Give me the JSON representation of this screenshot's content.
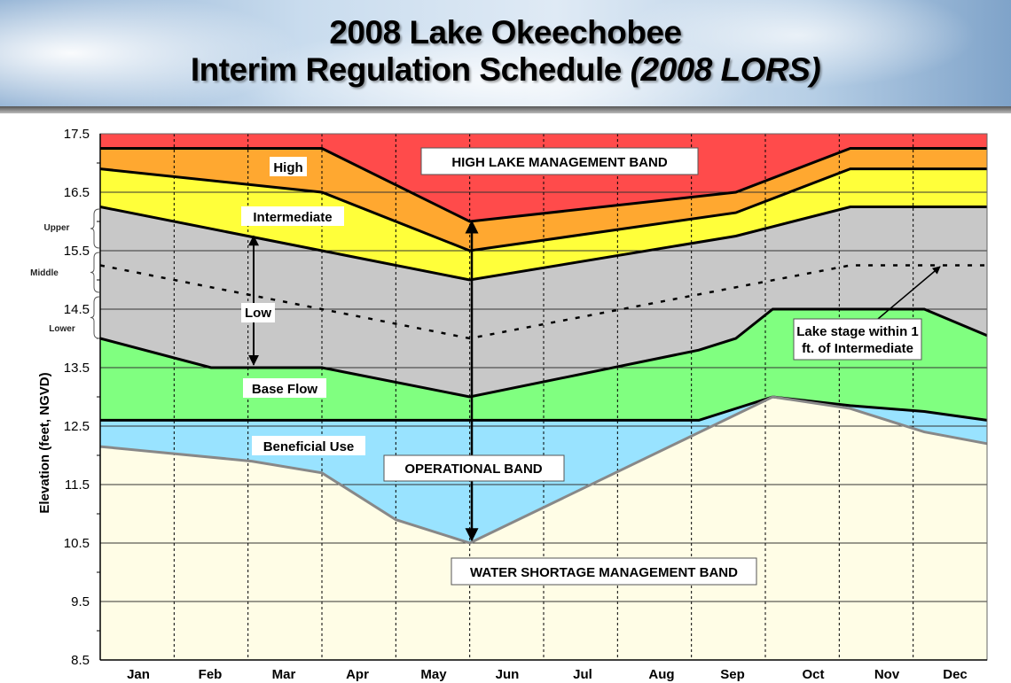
{
  "header": {
    "title_line1": "2008 Lake Okeechobee",
    "title_line2_main": "Interim Regulation Schedule ",
    "title_line2_italic": "(2008 LORS)"
  },
  "chart_data": {
    "type": "area",
    "title": "2008 Lake Okeechobee Interim Regulation Schedule (2008 LORS)",
    "ylabel": "Elevation (feet, NGVD)",
    "xlabel": "",
    "x_unit": "months from Jan 1",
    "xlim": [
      0,
      12
    ],
    "ylim": [
      8.5,
      17.5
    ],
    "yticks": [
      8.5,
      9.5,
      10.5,
      11.5,
      12.5,
      13.5,
      14.5,
      15.5,
      16.5,
      17.5
    ],
    "categories": [
      "Jan",
      "Feb",
      "Mar",
      "Apr",
      "May",
      "Jun",
      "Jul",
      "Aug",
      "Sep",
      "Oct",
      "Nov",
      "Dec"
    ],
    "grid": true,
    "bands": [
      {
        "name": "High Lake Management Band",
        "color": "#ff4b4b",
        "upper": "top",
        "lower": "high_top"
      },
      {
        "name": "High",
        "color": "#ffa830",
        "upper": "high_top",
        "lower": "intermediate_top"
      },
      {
        "name": "Intermediate",
        "color": "#ffff3a",
        "upper": "intermediate_top",
        "lower": "low_top"
      },
      {
        "name": "Low",
        "color": "#c8c8c8",
        "upper": "low_top",
        "lower": "base_flow_top"
      },
      {
        "name": "Base Flow",
        "color": "#80ff80",
        "upper": "base_flow_top",
        "lower": "beneficial_use_top"
      },
      {
        "name": "Beneficial Use",
        "color": "#99e3ff",
        "upper": "beneficial_use_top",
        "lower": "water_shortage_top"
      },
      {
        "name": "Water Shortage Management Band",
        "color": "#fffde6",
        "upper": "water_shortage_top",
        "lower": "bottom"
      }
    ],
    "series": {
      "top": [
        [
          0,
          17.5
        ],
        [
          12,
          17.5
        ]
      ],
      "high_top": [
        [
          0,
          17.25
        ],
        [
          3,
          17.25
        ],
        [
          5,
          16.0
        ],
        [
          8.6,
          16.5
        ],
        [
          10.15,
          17.25
        ],
        [
          12,
          17.25
        ]
      ],
      "intermediate_top": [
        [
          0,
          16.9
        ],
        [
          3,
          16.5
        ],
        [
          5,
          15.5
        ],
        [
          8.6,
          16.15
        ],
        [
          10.15,
          16.9
        ],
        [
          12,
          16.9
        ]
      ],
      "low_top": [
        [
          0,
          16.25
        ],
        [
          3,
          15.5
        ],
        [
          5,
          15.0
        ],
        [
          8.6,
          15.75
        ],
        [
          10.15,
          16.25
        ],
        [
          12,
          16.25
        ]
      ],
      "base_flow_top": [
        [
          0,
          14.0
        ],
        [
          1.5,
          13.5
        ],
        [
          3,
          13.5
        ],
        [
          5,
          13.0
        ],
        [
          8.1,
          13.8
        ],
        [
          8.6,
          14.0
        ],
        [
          9.1,
          14.5
        ],
        [
          11.15,
          14.5
        ],
        [
          12,
          14.05
        ]
      ],
      "beneficial_use_top": [
        [
          0,
          12.6
        ],
        [
          8.1,
          12.6
        ],
        [
          9.1,
          13.0
        ],
        [
          10.15,
          12.85
        ],
        [
          11.15,
          12.75
        ],
        [
          12,
          12.6
        ]
      ],
      "water_shortage_top": [
        [
          0,
          12.15
        ],
        [
          2.05,
          11.9
        ],
        [
          3,
          11.7
        ],
        [
          4,
          10.9
        ],
        [
          5,
          10.5
        ],
        [
          9.1,
          13.0
        ],
        [
          10.15,
          12.8
        ],
        [
          11.15,
          12.4
        ],
        [
          12,
          12.2
        ]
      ],
      "middle_line": [
        [
          0,
          15.25
        ],
        [
          3,
          14.5
        ],
        [
          5,
          14.0
        ],
        [
          10.15,
          15.25
        ],
        [
          12,
          15.25
        ]
      ],
      "bottom": [
        [
          0,
          8.5
        ],
        [
          12,
          8.5
        ]
      ]
    },
    "annotations": {
      "high": "High",
      "intermediate": "Intermediate",
      "low": "Low",
      "base_flow": "Base Flow",
      "beneficial_use": "Beneficial Use",
      "high_lake": "HIGH LAKE MANAGEMENT BAND",
      "operational": "OPERATIONAL BAND",
      "water_shortage": "WATER SHORTAGE MANAGEMENT BAND",
      "lake_stage_line1": "Lake stage within 1",
      "lake_stage_line2": "ft. of Intermediate",
      "upper": "Upper",
      "middle": "Middle",
      "lower": "Lower"
    }
  }
}
